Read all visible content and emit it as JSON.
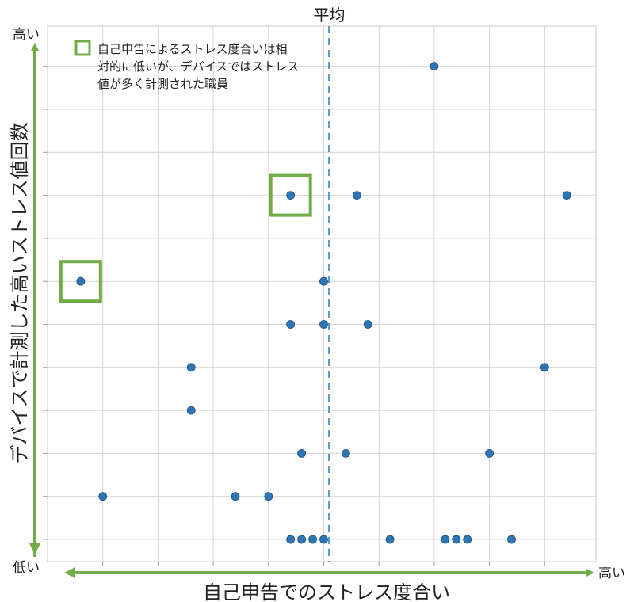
{
  "chart_data": {
    "type": "scatter",
    "title": "",
    "xlabel": "自己申告でのストレス度合い",
    "ylabel": "デバイスで計測した高いストレス値回数",
    "x_low_label": "低い",
    "x_high_label": "高い",
    "y_low_label": "低い",
    "y_high_label": "高い",
    "xlim": [
      0,
      10
    ],
    "ylim": [
      0,
      12
    ],
    "grid": true,
    "mean_line": {
      "x": 5.1,
      "label": "平均",
      "color": "#5b9bd5"
    },
    "annotation": {
      "text_lines": [
        "自己申告によるストレス度合いは相",
        "対的に低いが、デバイスではストレス",
        "値が多く計測された職員"
      ],
      "color": "#70ad47",
      "highlighted_points": [
        [
          4.4,
          8
        ],
        [
          0.6,
          6
        ]
      ]
    },
    "accent_color": "#70ad47",
    "point_color": "#2e75b6",
    "points": [
      {
        "x": 7.0,
        "y": 11
      },
      {
        "x": 4.4,
        "y": 8
      },
      {
        "x": 5.6,
        "y": 8
      },
      {
        "x": 9.4,
        "y": 8
      },
      {
        "x": 0.6,
        "y": 6
      },
      {
        "x": 5.0,
        "y": 6
      },
      {
        "x": 4.4,
        "y": 5
      },
      {
        "x": 5.0,
        "y": 5
      },
      {
        "x": 5.8,
        "y": 5
      },
      {
        "x": 2.6,
        "y": 4
      },
      {
        "x": 9.0,
        "y": 4
      },
      {
        "x": 2.6,
        "y": 3
      },
      {
        "x": 4.6,
        "y": 2
      },
      {
        "x": 5.4,
        "y": 2
      },
      {
        "x": 8.0,
        "y": 2
      },
      {
        "x": 1.0,
        "y": 1
      },
      {
        "x": 3.4,
        "y": 1
      },
      {
        "x": 4.0,
        "y": 1
      },
      {
        "x": 4.4,
        "y": 0
      },
      {
        "x": 4.6,
        "y": 0
      },
      {
        "x": 4.8,
        "y": 0
      },
      {
        "x": 5.0,
        "y": 0
      },
      {
        "x": 6.2,
        "y": 0
      },
      {
        "x": 7.2,
        "y": 0
      },
      {
        "x": 7.4,
        "y": 0
      },
      {
        "x": 7.6,
        "y": 0
      },
      {
        "x": 8.4,
        "y": 0
      }
    ]
  }
}
